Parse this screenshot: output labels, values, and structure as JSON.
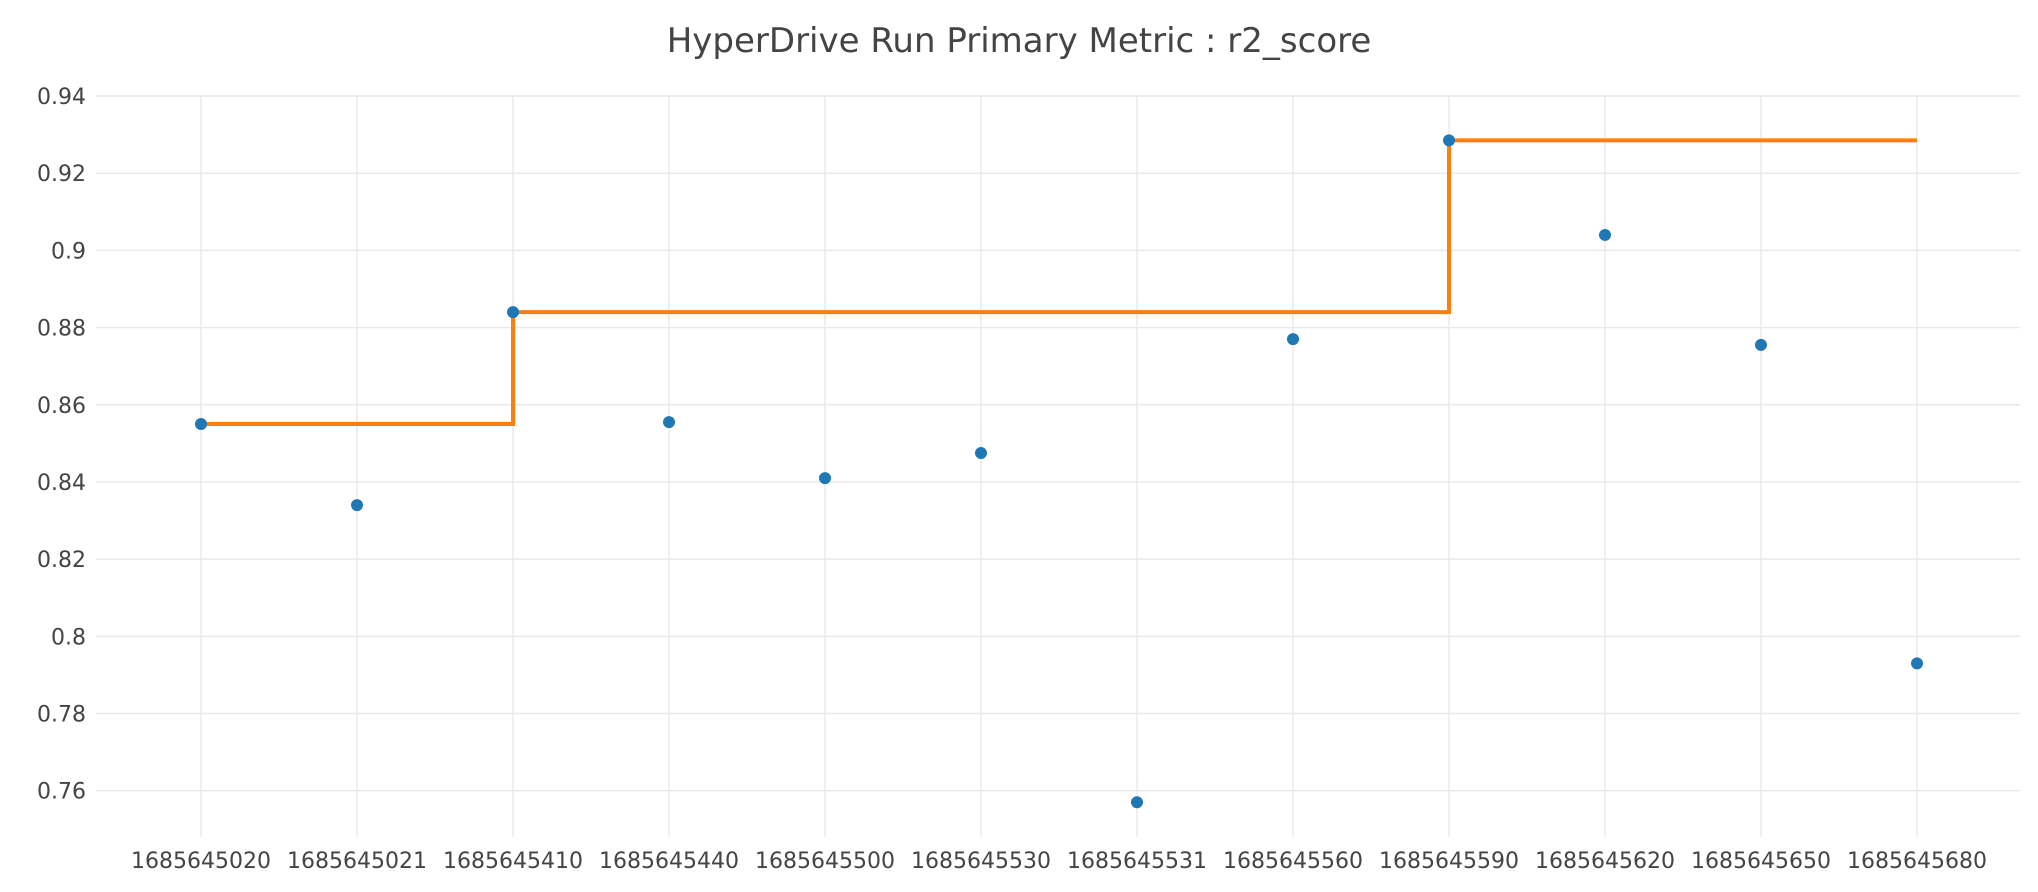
{
  "chart_data": {
    "type": "scatter",
    "title": "HyperDrive Run Primary Metric : r2_score",
    "xlabel": "",
    "ylabel": "",
    "categories": [
      "1685645020",
      "1685645021",
      "1685645410",
      "1685645440",
      "1685645500",
      "1685645530",
      "1685645531",
      "1685645560",
      "1685645590",
      "1685645620",
      "1685645650",
      "1685645680"
    ],
    "ylim": [
      0.748,
      0.94
    ],
    "yticks": [
      0.76,
      0.78,
      0.8,
      0.82,
      0.84,
      0.86,
      0.88,
      0.9,
      0.92,
      0.94
    ],
    "ytick_labels": [
      "0.76",
      "0.78",
      "0.8",
      "0.82",
      "0.84",
      "0.86",
      "0.88",
      "0.9",
      "0.92",
      "0.94"
    ],
    "grid": true,
    "legend": "none",
    "series": [
      {
        "kind": "scatter",
        "color": "#1f77b4",
        "values": [
          0.855,
          0.834,
          0.884,
          0.8555,
          0.841,
          0.8475,
          0.757,
          0.877,
          0.9285,
          0.904,
          0.8755,
          0.793
        ]
      },
      {
        "kind": "step-line",
        "color": "#ff7f0e",
        "values": [
          0.855,
          0.855,
          0.884,
          0.884,
          0.884,
          0.884,
          0.884,
          0.884,
          0.9285,
          0.9285,
          0.9285,
          0.9285
        ]
      }
    ]
  }
}
